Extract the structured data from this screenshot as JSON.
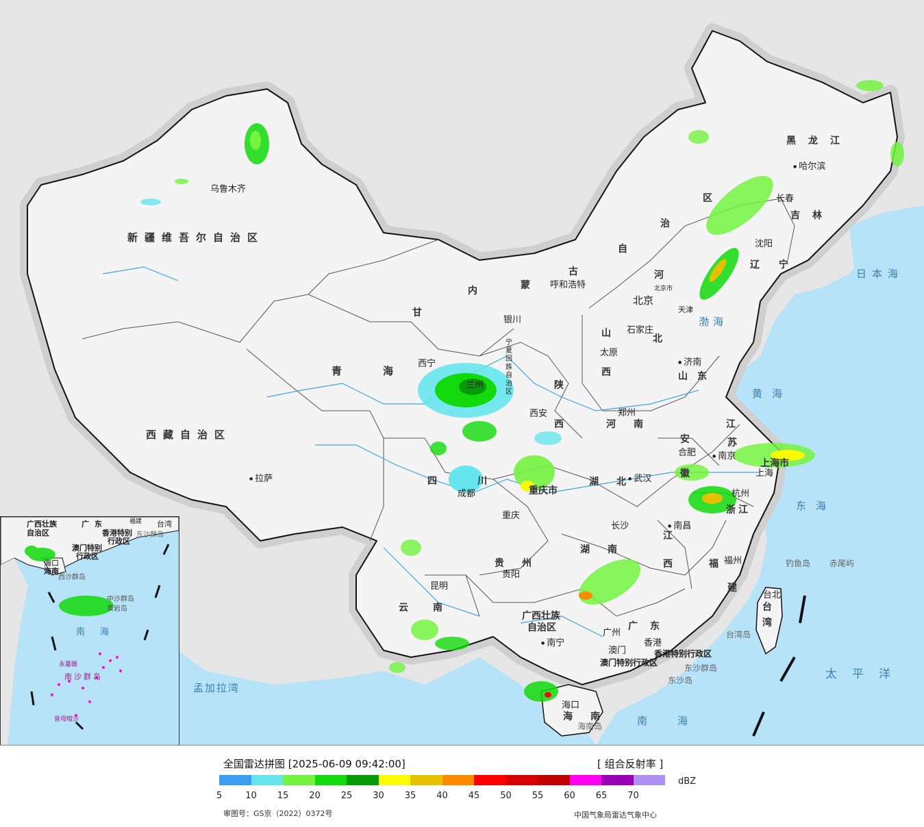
{
  "map": {
    "colors": {
      "land": "#f4f4f4",
      "neighbor": "#e6e6e6",
      "sea": "#b6e3f7",
      "border": "#111111",
      "river": "#3aa6e0"
    },
    "labels": {
      "regions": [
        {
          "name": "xinjiang",
          "text": "新疆维吾尔自治区"
        },
        {
          "name": "xizang",
          "text": "西藏自治区"
        },
        {
          "name": "qinghai",
          "text": "青海"
        },
        {
          "name": "gansu",
          "text": "甘"
        },
        {
          "name": "neimenggu-1",
          "text": "内"
        },
        {
          "name": "neimenggu-2",
          "text": "蒙"
        },
        {
          "name": "neimenggu-3",
          "text": "古"
        },
        {
          "name": "neimenggu-4",
          "text": "自"
        },
        {
          "name": "neimenggu-5",
          "text": "治"
        },
        {
          "name": "neimenggu-6",
          "text": "区"
        },
        {
          "name": "heilongjiang",
          "text": "黑龙江"
        },
        {
          "name": "jilin",
          "text": "吉林"
        },
        {
          "name": "liaoning-1",
          "text": "辽"
        },
        {
          "name": "liaoning-2",
          "text": "宁"
        },
        {
          "name": "hebei-1",
          "text": "河"
        },
        {
          "name": "hebei-2",
          "text": "北"
        },
        {
          "name": "shanxi-1",
          "text": "山"
        },
        {
          "name": "shanxi-2",
          "text": "西"
        },
        {
          "name": "shaanxi-1",
          "text": "陕"
        },
        {
          "name": "shaanxi-2",
          "text": "西"
        },
        {
          "name": "shandong",
          "text": "山东"
        },
        {
          "name": "henan",
          "text": "河南"
        },
        {
          "name": "jiangsu-1",
          "text": "江"
        },
        {
          "name": "jiangsu-2",
          "text": "苏"
        },
        {
          "name": "anhui-1",
          "text": "安"
        },
        {
          "name": "anhui-2",
          "text": "徽"
        },
        {
          "name": "zhejiang",
          "text": "浙江"
        },
        {
          "name": "hubei",
          "text": "湖北"
        },
        {
          "name": "hunan",
          "text": "湖南"
        },
        {
          "name": "jiangxi-1",
          "text": "江"
        },
        {
          "name": "jiangxi-2",
          "text": "西"
        },
        {
          "name": "fujian-1",
          "text": "福"
        },
        {
          "name": "fujian-2",
          "text": "建"
        },
        {
          "name": "sichuan-1",
          "text": "四"
        },
        {
          "name": "sichuan-2",
          "text": "川"
        },
        {
          "name": "chongqing",
          "text": "重庆市"
        },
        {
          "name": "guizhou",
          "text": "贵州"
        },
        {
          "name": "yunnan",
          "text": "云南"
        },
        {
          "name": "guangxi-1",
          "text": "广西壮族"
        },
        {
          "name": "guangxi-2",
          "text": "自治区"
        },
        {
          "name": "guangdong",
          "text": "广东"
        },
        {
          "name": "hainan",
          "text": "海南"
        },
        {
          "name": "taiwan-1",
          "text": "台"
        },
        {
          "name": "taiwan-2",
          "text": "湾"
        },
        {
          "name": "ningxia",
          "text": "宁夏回族自治区"
        },
        {
          "name": "shanghai",
          "text": "上海市"
        },
        {
          "name": "tianjin",
          "text": "天津"
        },
        {
          "name": "beijing-small",
          "text": "北京市"
        },
        {
          "name": "hongkong-sar",
          "text": "香港特别行政区"
        },
        {
          "name": "macao-sar",
          "text": "澳门特别行政区"
        }
      ],
      "cities": [
        {
          "name": "urumqi",
          "text": "乌鲁木齐"
        },
        {
          "name": "lhasa",
          "text": "拉萨"
        },
        {
          "name": "xining",
          "text": "西宁"
        },
        {
          "name": "lanzhou",
          "text": "兰州"
        },
        {
          "name": "yinchuan",
          "text": "银川"
        },
        {
          "name": "hohhot",
          "text": "呼和浩特"
        },
        {
          "name": "beijing",
          "text": "北京"
        },
        {
          "name": "shijiazhuang",
          "text": "石家庄"
        },
        {
          "name": "taiyuan",
          "text": "太原"
        },
        {
          "name": "jinan",
          "text": "济南"
        },
        {
          "name": "xian",
          "text": "西安"
        },
        {
          "name": "zhengzhou",
          "text": "郑州"
        },
        {
          "name": "hefei",
          "text": "合肥"
        },
        {
          "name": "nanjing",
          "text": "南京"
        },
        {
          "name": "shanghai-city",
          "text": "上海"
        },
        {
          "name": "hangzhou",
          "text": "杭州"
        },
        {
          "name": "wuhan",
          "text": "武汉"
        },
        {
          "name": "changsha",
          "text": "长沙"
        },
        {
          "name": "nanchang",
          "text": "南昌"
        },
        {
          "name": "fuzhou",
          "text": "福州"
        },
        {
          "name": "chengdu",
          "text": "成都"
        },
        {
          "name": "chongqing-city",
          "text": "重庆"
        },
        {
          "name": "guiyang",
          "text": "贵阳"
        },
        {
          "name": "kunming",
          "text": "昆明"
        },
        {
          "name": "nanning",
          "text": "南宁"
        },
        {
          "name": "guangzhou",
          "text": "广州"
        },
        {
          "name": "macao",
          "text": "澳门"
        },
        {
          "name": "hongkong",
          "text": "香港"
        },
        {
          "name": "haikou",
          "text": "海口"
        },
        {
          "name": "taipei",
          "text": "台北"
        },
        {
          "name": "harbin",
          "text": "哈尔滨"
        },
        {
          "name": "changchun",
          "text": "长春"
        },
        {
          "name": "shenyang",
          "text": "沈阳"
        }
      ],
      "seas": [
        {
          "name": "bohai",
          "text": "渤海"
        },
        {
          "name": "huanghai",
          "text": "黄海"
        },
        {
          "name": "donghai",
          "text": "东海"
        },
        {
          "name": "nanhai",
          "text": "南海"
        },
        {
          "name": "japan-sea",
          "text": "日本海"
        },
        {
          "name": "pacific",
          "text": "太平洋"
        },
        {
          "name": "bengal",
          "text": "孟加拉湾"
        }
      ],
      "islands": [
        {
          "name": "diaoyu",
          "text": "钓鱼岛"
        },
        {
          "name": "chiwei",
          "text": "赤尾屿"
        },
        {
          "name": "taiwan-island",
          "text": "台湾岛"
        },
        {
          "name": "hainan-island",
          "text": "海南岛"
        },
        {
          "name": "dongsha-islands",
          "text": "东沙群岛"
        },
        {
          "name": "dongsha-island",
          "text": "东沙岛"
        }
      ]
    },
    "inset": {
      "labels": [
        {
          "name": "inset-guangxi",
          "text": "广西壮族"
        },
        {
          "name": "inset-guangxi-2",
          "text": "自治区"
        },
        {
          "name": "inset-guangdong",
          "text": "广东"
        },
        {
          "name": "inset-fujian",
          "text": "福建"
        },
        {
          "name": "inset-taiwan",
          "text": "台湾"
        },
        {
          "name": "inset-hk",
          "text": "香港特别"
        },
        {
          "name": "inset-hk-2",
          "text": "行政区"
        },
        {
          "name": "inset-macao",
          "text": "澳门特别"
        },
        {
          "name": "inset-macao-2",
          "text": "行政区"
        },
        {
          "name": "inset-dongsha",
          "text": "东沙群岛"
        },
        {
          "name": "inset-haikou",
          "text": "海口"
        },
        {
          "name": "inset-hainan",
          "text": "海南"
        },
        {
          "name": "inset-xisha",
          "text": "西沙群岛"
        },
        {
          "name": "inset-zhongsha",
          "text": "中沙群岛"
        },
        {
          "name": "inset-huangyan",
          "text": "黄岩岛"
        },
        {
          "name": "inset-nanhai",
          "text": "南海"
        },
        {
          "name": "inset-yongshu",
          "text": "永暑礁"
        },
        {
          "name": "inset-nansha",
          "text": "南沙群岛"
        },
        {
          "name": "inset-zengmu",
          "text": "曾母暗沙"
        }
      ]
    }
  },
  "legend": {
    "title": "全国雷达拼图 [2025-06-09 09:42:00]",
    "product": "[ 组合反射率 ]",
    "unit": "dBZ",
    "colors": [
      "#3b9ef0",
      "#66e5ee",
      "#74f33f",
      "#12d90b",
      "#079b0a",
      "#fbfb02",
      "#e5c101",
      "#fc8b00",
      "#fe0000",
      "#d70000",
      "#c10000",
      "#ff00f1",
      "#9900b5",
      "#ad90f0"
    ],
    "ticks": [
      "5",
      "10",
      "15",
      "20",
      "25",
      "30",
      "35",
      "40",
      "45",
      "50",
      "55",
      "60",
      "65",
      "70"
    ],
    "approval": "审图号：GS京（2022）0372号",
    "credit": "中国气象局雷达气象中心"
  }
}
